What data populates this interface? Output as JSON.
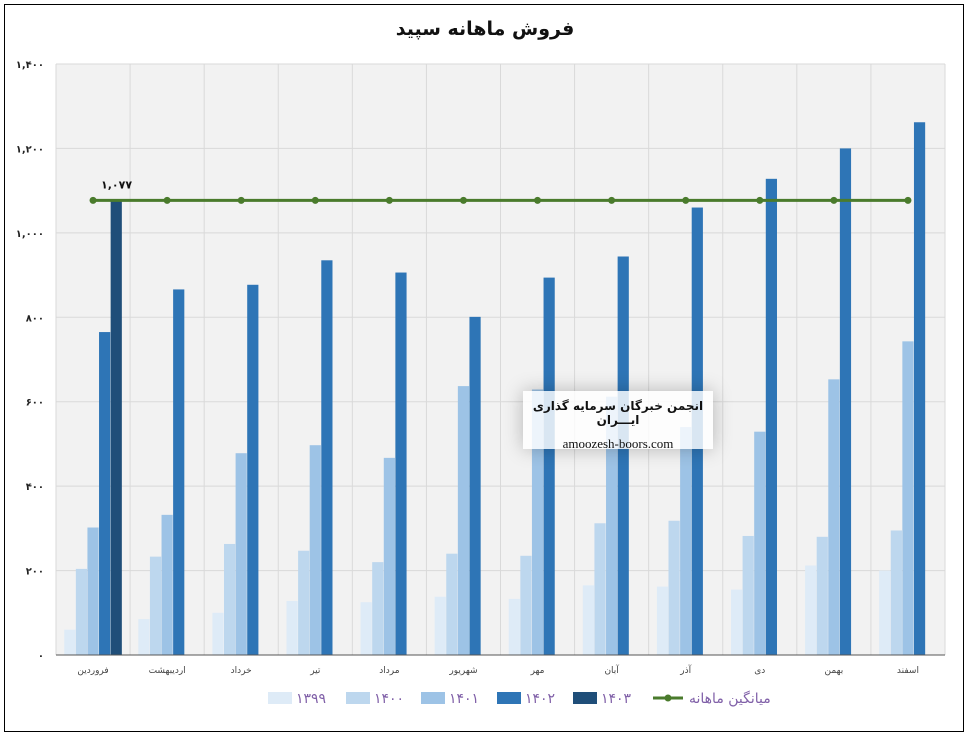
{
  "chart_data": {
    "type": "bar",
    "title": "فروش ماهانه سپید",
    "categories": [
      "فروردین",
      "اردیبهشت",
      "خرداد",
      "تیر",
      "مرداد",
      "شهریور",
      "مهر",
      "آبان",
      "آذر",
      "دی",
      "بهمن",
      "اسفند"
    ],
    "ylim": [
      0,
      1400
    ],
    "yticks": [
      "۰",
      "۲۰۰",
      "۴۰۰",
      "۶۰۰",
      "۸۰۰",
      "۱,۰۰۰",
      "۱,۲۰۰",
      "۱,۴۰۰"
    ],
    "ytick_values": [
      0,
      200,
      400,
      600,
      800,
      1000,
      1200,
      1400
    ],
    "grid": true,
    "legend_position": "bottom",
    "series": [
      {
        "name": "۱۳۹۹",
        "color": "#deebf7",
        "values": [
          60,
          85,
          100,
          128,
          125,
          138,
          133,
          165,
          162,
          155,
          212,
          200
        ]
      },
      {
        "name": "۱۴۰۰",
        "color": "#bdd7ee",
        "values": [
          204,
          233,
          263,
          247,
          220,
          240,
          235,
          312,
          318,
          282,
          280,
          295
        ]
      },
      {
        "name": "۱۴۰۱",
        "color": "#9dc3e6",
        "values": [
          302,
          332,
          478,
          497,
          467,
          637,
          629,
          612,
          540,
          529,
          653,
          743
        ]
      },
      {
        "name": "۱۴۰۲",
        "color": "#2e75b6",
        "values": [
          765,
          866,
          877,
          935,
          906,
          801,
          894,
          944,
          1060,
          1128,
          1200,
          1262
        ]
      },
      {
        "name": "۱۴۰۳",
        "color": "#1f4e79",
        "values": [
          1077,
          null,
          null,
          null,
          null,
          null,
          null,
          null,
          null,
          null,
          null,
          null
        ]
      }
    ],
    "average_line": {
      "name": "میانگین ماهانه",
      "color": "#4a7b2c",
      "value": 1077,
      "label": "۱,۰۷۷"
    }
  },
  "watermark": {
    "line1": "انجمن خبرگان سرمایه گذاری ایـــران",
    "line2": "amoozesh-boors.com"
  }
}
